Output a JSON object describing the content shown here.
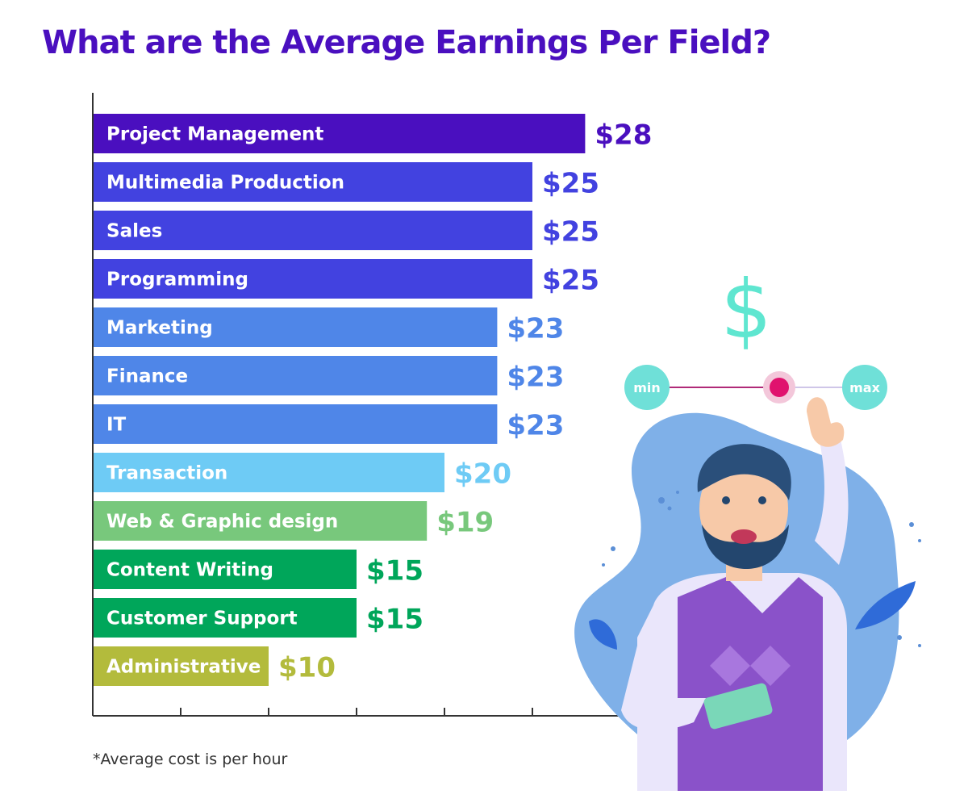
{
  "chart_data": {
    "type": "bar",
    "orientation": "horizontal",
    "title": "What are the Average Earnings Per Field?",
    "footnote": "*Average cost is per hour",
    "value_prefix": "$",
    "categories": [
      "Project Management",
      "Multimedia Production",
      "Sales",
      "Programming",
      "Marketing",
      "Finance",
      "IT",
      "Transaction",
      "Web & Graphic design",
      "Content Writing",
      "Customer Support",
      "Administrative"
    ],
    "values": [
      28,
      25,
      25,
      25,
      23,
      23,
      23,
      20,
      19,
      15,
      15,
      10
    ],
    "value_labels": [
      "$28",
      "$25",
      "$25",
      "$25",
      "$23",
      "$23",
      "$23",
      "$20",
      "$19",
      "$15",
      "$15",
      "$10"
    ],
    "bar_colors": [
      "#4a0fbf",
      "#4242e0",
      "#4242e0",
      "#4242e0",
      "#4f86e8",
      "#4f86e8",
      "#4f86e8",
      "#6ecbf5",
      "#78c87c",
      "#00a65a",
      "#00a65a",
      "#b3bb3c"
    ],
    "value_label_colors": [
      "#4a0fbf",
      "#4242e0",
      "#4242e0",
      "#4242e0",
      "#4f86e8",
      "#4f86e8",
      "#4f86e8",
      "#6ecbf5",
      "#78c87c",
      "#00a65a",
      "#00a65a",
      "#b3bb3c"
    ],
    "xlim": [
      0,
      30
    ],
    "x_ticks": [
      0,
      5,
      10,
      15,
      20,
      25,
      30
    ],
    "grid": false,
    "legend": "none"
  },
  "colors": {
    "title": "#4a0fbf",
    "axis": "#333333"
  },
  "illustration": {
    "dollar_sign": "$",
    "slider_min_label": "min",
    "slider_max_label": "max",
    "slider_level": 0.6
  }
}
